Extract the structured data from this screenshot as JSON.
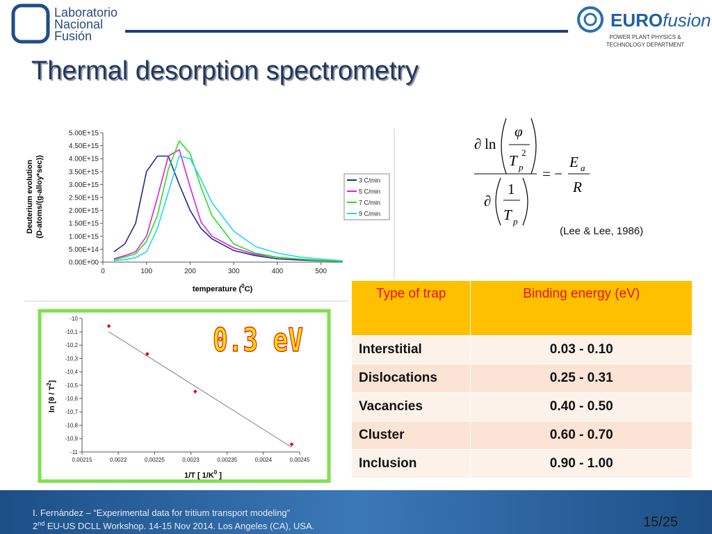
{
  "header": {
    "lab_logo": [
      "Laboratorio",
      "Nacional",
      "Fusión"
    ],
    "euro": "EURO",
    "fusion": "fusion",
    "department": [
      "POWER PLANT PHYSICS &",
      "TECHNOLOGY DEPARTMENT"
    ]
  },
  "title": "Thermal desorption spectrometry",
  "chart_data": [
    {
      "type": "line",
      "y_label": [
        "Deuterium evolution",
        "(D-atoms/(g-alloy*sec))"
      ],
      "x_label": [
        "temperature (",
        "0",
        "C)"
      ],
      "x": [
        25,
        50,
        75,
        100,
        125,
        150,
        175,
        200,
        225,
        250,
        300,
        350,
        400,
        450,
        500,
        550
      ],
      "series": [
        {
          "name": "3 C/min",
          "color": "#1f2a8a",
          "values": [
            400000000000000.0,
            700000000000000.0,
            1500000000000000.0,
            3500000000000000.0,
            4100000000000000.0,
            4100000000000000.0,
            3000000000000000.0,
            2000000000000000.0,
            1300000000000000.0,
            900000000000000.0,
            450000000000000.0,
            250000000000000.0,
            130000000000000.0,
            80000000000000.0,
            50000000000000.0,
            30000000000000.0
          ]
        },
        {
          "name": "5 C/min",
          "color": "#e020d0",
          "values": [
            130000000000000.0,
            250000000000000.0,
            400000000000000.0,
            1000000000000000.0,
            2500000000000000.0,
            4100000000000000.0,
            4350000000000000.0,
            2900000000000000.0,
            1550000000000000.0,
            1000000000000000.0,
            550000000000000.0,
            300000000000000.0,
            190000000000000.0,
            120000000000000.0,
            70000000000000.0,
            30000000000000.0
          ]
        },
        {
          "name": "7 C/min",
          "color": "#22e022",
          "values": [
            80000000000000.0,
            200000000000000.0,
            320000000000000.0,
            800000000000000.0,
            1800000000000000.0,
            3600000000000000.0,
            4680000000000000.0,
            4200000000000000.0,
            2900000000000000.0,
            1800000000000000.0,
            700000000000000.0,
            350000000000000.0,
            190000000000000.0,
            120000000000000.0,
            70000000000000.0,
            30000000000000.0
          ]
        },
        {
          "name": "9 C/min",
          "color": "#20d8f0",
          "values": [
            50000000000000.0,
            100000000000000.0,
            170000000000000.0,
            400000000000000.0,
            1300000000000000.0,
            2700000000000000.0,
            4100000000000000.0,
            4000000000000000.0,
            3200000000000000.0,
            2300000000000000.0,
            1200000000000000.0,
            600000000000000.0,
            350000000000000.0,
            200000000000000.0,
            120000000000000.0,
            50000000000000.0
          ]
        }
      ],
      "xlim": [
        0,
        550
      ],
      "xticks": [
        0,
        100,
        200,
        300,
        400,
        500
      ],
      "ylim": [
        0,
        5000000000000000.0
      ],
      "yticks": [
        {
          "value": 0,
          "label": "0.00E+00"
        },
        {
          "value": 500000000000000.0,
          "label": "5.00E+14"
        },
        {
          "value": 1000000000000000.0,
          "label": "1.00E+15"
        },
        {
          "value": 1500000000000000.0,
          "label": "1.50E+15"
        },
        {
          "value": 2000000000000000.0,
          "label": "2.00E+15"
        },
        {
          "value": 2500000000000000.0,
          "label": "2.50E+15"
        },
        {
          "value": 3000000000000000.0,
          "label": "3.00E+15"
        },
        {
          "value": 3500000000000000.0,
          "label": "3.50E+15"
        },
        {
          "value": 4000000000000000.0,
          "label": "4.00E+15"
        },
        {
          "value": 4500000000000000.0,
          "label": "4.50E+15"
        },
        {
          "value": 5000000000000000.0,
          "label": "5.00E+15"
        }
      ],
      "legend": "right"
    },
    {
      "type": "scatter",
      "y_label": [
        "ln [θ / T",
        "2",
        "]"
      ],
      "x_label": [
        "1/T [ 1/K",
        "0",
        " ]"
      ],
      "annotation": "0.3 eV",
      "x": [
        0.002187,
        0.00224,
        0.002306,
        0.002439
      ],
      "values": [
        -10.057,
        -10.266,
        -10.547,
        -10.943
      ],
      "color": "#e00000",
      "fit": {
        "x": [
          0.002187,
          0.002439
        ],
        "values": [
          -10.1,
          -10.965
        ],
        "color": "#808080"
      },
      "xlim": [
        0.00215,
        0.00245
      ],
      "xticks": [
        {
          "value": 0.00215,
          "label": "0,00215"
        },
        {
          "value": 0.0022,
          "label": "0,0022"
        },
        {
          "value": 0.00225,
          "label": "0,00225"
        },
        {
          "value": 0.0023,
          "label": "0,0023"
        },
        {
          "value": 0.00235,
          "label": "0,00235"
        },
        {
          "value": 0.0024,
          "label": "0,0024"
        },
        {
          "value": 0.00245,
          "label": "0,00245"
        }
      ],
      "ylim": [
        -11,
        -10
      ],
      "yticks": [
        {
          "value": -11,
          "label": "-11"
        },
        {
          "value": -10.9,
          "label": "-10,9"
        },
        {
          "value": -10.8,
          "label": "-10,8"
        },
        {
          "value": -10.7,
          "label": "-10,7"
        },
        {
          "value": -10.6,
          "label": "-10,6"
        },
        {
          "value": -10.5,
          "label": "-10,5"
        },
        {
          "value": -10.4,
          "label": "-10,4"
        },
        {
          "value": -10.3,
          "label": "-10,3"
        },
        {
          "value": -10.2,
          "label": "-10,2"
        },
        {
          "value": -10.1,
          "label": "-10,1"
        },
        {
          "value": -10,
          "label": "-10"
        }
      ]
    }
  ],
  "equation": {
    "d": "∂",
    "ln": "ln",
    "phi": "φ",
    "T": "T",
    "p": "p",
    "two": "2",
    "one": "1",
    "eq": "= −",
    "E": "E",
    "a": "a",
    "R": "R"
  },
  "citation": "(Lee & Lee, 1986)",
  "table": {
    "header": [
      "Type of trap",
      "Binding energy (eV)"
    ],
    "rows": [
      [
        "Interstitial",
        "0.03 - 0.10"
      ],
      [
        "Dislocations",
        "0.25 - 0.31"
      ],
      [
        "Vacancies",
        "0.40 - 0.50"
      ],
      [
        "Cluster",
        "0.60 - 0.70"
      ],
      [
        "Inclusion",
        "0.90 - 1.00"
      ]
    ]
  },
  "footer": {
    "line1": "I. Fernández – “Experimental data for tritium transport modeling”",
    "line2": [
      "2",
      "nd",
      " EU-US DCLL Workshop. 14-15 Nov 2014. Los Angeles (CA), USA."
    ],
    "page": "15/25"
  }
}
